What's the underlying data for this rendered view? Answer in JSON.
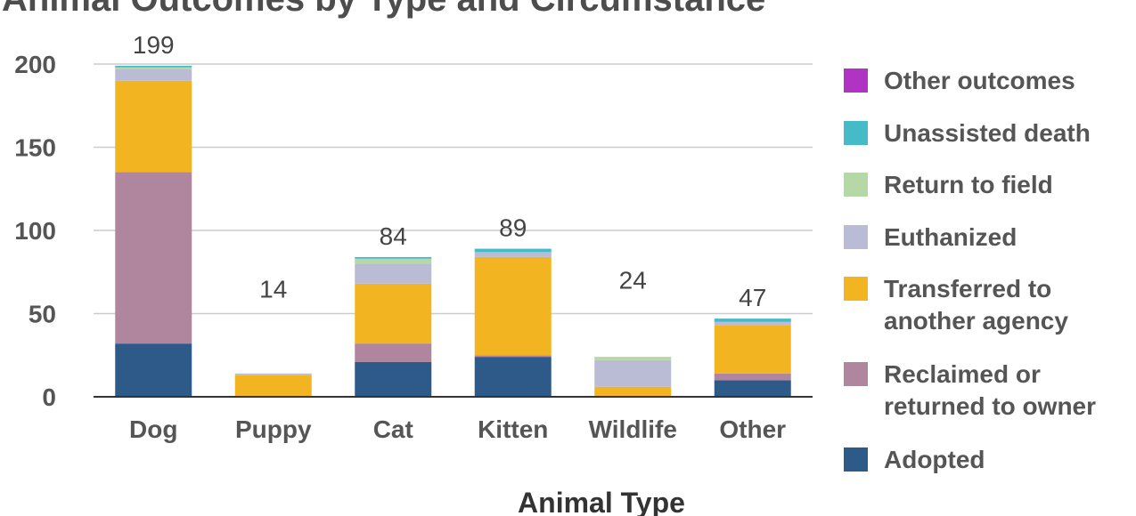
{
  "chart_data": {
    "type": "bar",
    "stacked": true,
    "title": "Animal Outcomes by Type and Circumstance",
    "xlabel": "Animal Type",
    "ylabel": "",
    "ylim": [
      0,
      200
    ],
    "yticks": [
      0,
      50,
      100,
      150,
      200
    ],
    "grid": true,
    "legend_position": "right",
    "categories": [
      "Dog",
      "Puppy",
      "Cat",
      "Kitten",
      "Wildlife",
      "Other"
    ],
    "totals": [
      199,
      14,
      84,
      89,
      24,
      47
    ],
    "series": [
      {
        "name": "Adopted",
        "color": "#2e5a8a",
        "values": [
          32,
          0,
          21,
          24,
          0,
          10
        ]
      },
      {
        "name": "Reclaimed or returned to owner",
        "color": "#b0869e",
        "values": [
          103,
          0,
          11,
          1,
          0,
          4
        ]
      },
      {
        "name": "Transferred to another agency",
        "color": "#f2b521",
        "values": [
          55,
          13,
          36,
          59,
          6,
          29
        ]
      },
      {
        "name": "Euthanized",
        "color": "#b9bcd4",
        "values": [
          7,
          1,
          12,
          3,
          16,
          2
        ]
      },
      {
        "name": "Return to field",
        "color": "#b5d8a6",
        "values": [
          1,
          0,
          3,
          0,
          2,
          0
        ]
      },
      {
        "name": "Unassisted death",
        "color": "#44bbc7",
        "values": [
          1,
          0,
          1,
          2,
          0,
          2
        ]
      },
      {
        "name": "Other outcomes",
        "color": "#b133c4",
        "values": [
          0,
          0,
          0,
          0,
          0,
          0
        ]
      }
    ]
  }
}
